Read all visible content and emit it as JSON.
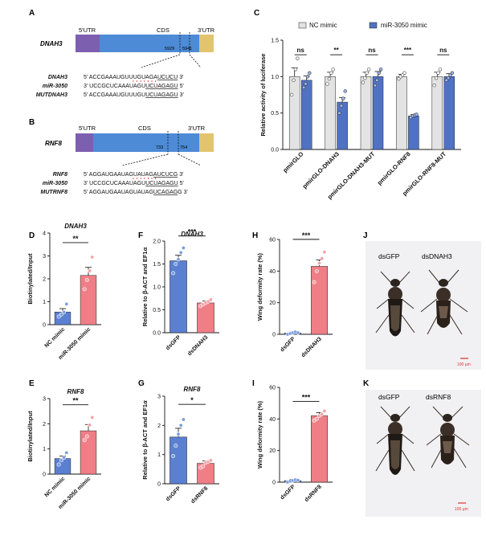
{
  "colors": {
    "blue": "#5b7fd1",
    "blue2": "#4f72c4",
    "pink": "#ef7e86",
    "grey": "#e3e3e3",
    "cds": "#4d8bd6",
    "utr5": "#7d5fb0",
    "utr3": "#e2c46f",
    "red": "#e03030"
  },
  "panel_labels": {
    "A": "A",
    "B": "B",
    "C": "C",
    "D": "D",
    "E": "E",
    "F": "F",
    "G": "G",
    "H": "H",
    "I": "I",
    "J": "J",
    "K": "K"
  },
  "gene_a": {
    "name": "DNAH3",
    "utr5": "5'UTR",
    "cds": "CDS",
    "utr3": "3'UTR",
    "pos1": "5929",
    "pos2": "5941",
    "rows": [
      {
        "label": "DNAH3",
        "pre": "5' ACCGAAAUGUUUGUAGA",
        "site": "UCUCU",
        "post": " 3'"
      },
      {
        "label": "miR-3050",
        "pre": "3' UCCGCUCAAAUAGU",
        "site": "UCUAGAGU",
        "post": " 5'"
      },
      {
        "label": "MUTDNAH3",
        "pre": "5' ACCGAAAUGUUUGU",
        "site": "UCUAGAGU",
        "post": " 3'"
      }
    ]
  },
  "gene_b": {
    "name": "RNF8",
    "utr5": "5'UTR",
    "cds": "CDS",
    "utr3": "3'UTR",
    "pos1": "733",
    "pos2": "754",
    "rows": [
      {
        "label": "RNF8",
        "pre": "5' AGGAUGAAUAGUAUAG",
        "site": "AUCUCG",
        "post": " 3'"
      },
      {
        "label": "miR-3050",
        "pre": "3' UCCGCUCAAAUAGU",
        "site": "UCUAGAGU",
        "post": " 5'"
      },
      {
        "label": "MUTRNF8",
        "pre": "5' AGGAUGAAUAGUAUAG",
        "site": "UCAGAG",
        "post": "G 3'"
      }
    ]
  },
  "chart_data": [
    {
      "panel": "C",
      "type": "bar",
      "ylabel": "Relative activity of luciferase",
      "ylim": [
        0,
        1.5
      ],
      "yticks": [
        "0.0",
        "0.5",
        "1.0",
        "1.5"
      ],
      "legend": [
        "NC mimic",
        "miR-3050 mimic"
      ],
      "legend_position": "top",
      "categories": [
        "pmirGLO",
        "pmirGLO-DNAH3",
        "pmirGLO-DNAH3-MUT",
        "pmirGLO-RNF8",
        "pmirGLO-RNF8-MUT"
      ],
      "series": [
        {
          "name": "NC mimic",
          "values": [
            1.0,
            1.0,
            1.0,
            1.0,
            1.0
          ],
          "errors": [
            0.12,
            0.06,
            0.06,
            0.03,
            0.06
          ]
        },
        {
          "name": "miR-3050 mimic",
          "values": [
            0.95,
            0.65,
            1.0,
            0.46,
            1.0
          ],
          "errors": [
            0.06,
            0.06,
            0.07,
            0.02,
            0.04
          ]
        }
      ],
      "significance": [
        "ns",
        "**",
        "ns",
        "***",
        "ns"
      ]
    },
    {
      "panel": "D",
      "type": "bar",
      "title": "DNAH3",
      "ylabel": "Biotinylated/Input",
      "ylim": [
        0,
        4
      ],
      "yticks": [
        "0",
        "1",
        "2",
        "3",
        "4"
      ],
      "categories": [
        "NC mimic",
        "miR-3050 mimic"
      ],
      "values": [
        0.55,
        2.15
      ],
      "errors": [
        0.15,
        0.35
      ],
      "significance": "**"
    },
    {
      "panel": "E",
      "type": "bar",
      "title": "RNF8",
      "ylabel": "Biotinylated/Input",
      "ylim": [
        0,
        3
      ],
      "yticks": [
        "0",
        "1",
        "2",
        "3"
      ],
      "categories": [
        "NC mimic",
        "miR-3050 mimic"
      ],
      "values": [
        0.62,
        1.72
      ],
      "errors": [
        0.1,
        0.25
      ],
      "significance": "**"
    },
    {
      "panel": "F",
      "type": "bar",
      "title": "DNAH3",
      "ylabel": "Relative to β-ACT and EF1α",
      "ylim": [
        0,
        2.0
      ],
      "yticks": [
        "0.0",
        "0.5",
        "1.0",
        "1.5",
        "2.0"
      ],
      "categories": [
        "dsGFP",
        "dsDNAH3"
      ],
      "values": [
        1.57,
        0.65
      ],
      "errors": [
        0.12,
        0.04
      ],
      "significance": "***"
    },
    {
      "panel": "G",
      "type": "bar",
      "title": "RNF8",
      "ylabel": "Relative to β-ACT and EF1α",
      "ylim": [
        0,
        3
      ],
      "yticks": [
        "0",
        "1",
        "2",
        "3"
      ],
      "categories": [
        "dsGFP",
        "dsRNF8"
      ],
      "values": [
        1.6,
        0.7
      ],
      "errors": [
        0.3,
        0.08
      ],
      "significance": "*"
    },
    {
      "panel": "H",
      "type": "bar",
      "ylabel": "Wing deformity rate (%)",
      "ylim": [
        0,
        60
      ],
      "yticks": [
        "0",
        "20",
        "40",
        "60"
      ],
      "categories": [
        "dsGFP",
        "dsDNAH3"
      ],
      "values": [
        0.8,
        43
      ],
      "errors": [
        0.8,
        4
      ],
      "significance": "***"
    },
    {
      "panel": "I",
      "type": "bar",
      "ylabel": "Wing deformity rate (%)",
      "ylim": [
        0,
        60
      ],
      "yticks": [
        "0",
        "20",
        "40",
        "60"
      ],
      "categories": [
        "dsGFP",
        "dsRNF8"
      ],
      "values": [
        1.0,
        42
      ],
      "errors": [
        0.8,
        2
      ],
      "significance": "***"
    }
  ],
  "photo_j": {
    "left": "dsGFP",
    "right": "dsDNAH3",
    "scale": "100 μm"
  },
  "photo_k": {
    "left": "dsGFP",
    "right": "dsRNF8",
    "scale": "100 μm"
  }
}
